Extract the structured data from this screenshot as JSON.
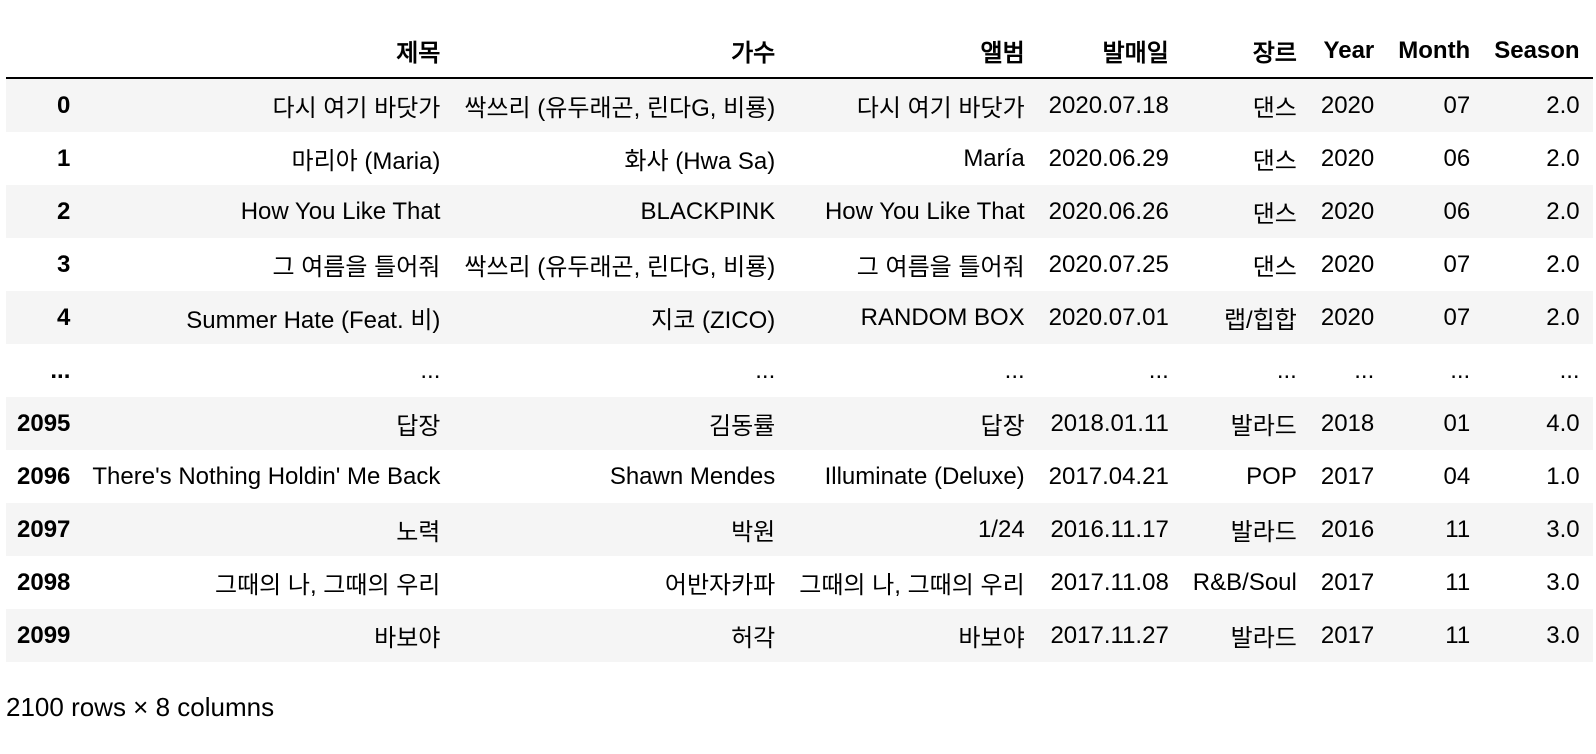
{
  "table": {
    "columns": [
      "제목",
      "가수",
      "앨범",
      "발매일",
      "장르",
      "Year",
      "Month",
      "Season"
    ],
    "rows": [
      {
        "index": "0",
        "cells": [
          "다시 여기 바닷가",
          "싹쓰리 (유두래곤, 린다G, 비룡)",
          "다시 여기 바닷가",
          "2020.07.18",
          "댄스",
          "2020",
          "07",
          "2.0"
        ]
      },
      {
        "index": "1",
        "cells": [
          "마리아 (Maria)",
          "화사 (Hwa Sa)",
          "María",
          "2020.06.29",
          "댄스",
          "2020",
          "06",
          "2.0"
        ]
      },
      {
        "index": "2",
        "cells": [
          "How You Like That",
          "BLACKPINK",
          "How You Like That",
          "2020.06.26",
          "댄스",
          "2020",
          "06",
          "2.0"
        ]
      },
      {
        "index": "3",
        "cells": [
          "그 여름을 틀어줘",
          "싹쓰리 (유두래곤, 린다G, 비룡)",
          "그 여름을 틀어줘",
          "2020.07.25",
          "댄스",
          "2020",
          "07",
          "2.0"
        ]
      },
      {
        "index": "4",
        "cells": [
          "Summer Hate (Feat. 비)",
          "지코 (ZICO)",
          "RANDOM BOX",
          "2020.07.01",
          "랩/힙합",
          "2020",
          "07",
          "2.0"
        ]
      },
      {
        "index": "...",
        "cells": [
          "...",
          "...",
          "...",
          "...",
          "...",
          "...",
          "...",
          "..."
        ]
      },
      {
        "index": "2095",
        "cells": [
          "답장",
          "김동률",
          "답장",
          "2018.01.11",
          "발라드",
          "2018",
          "01",
          "4.0"
        ]
      },
      {
        "index": "2096",
        "cells": [
          "There's Nothing Holdin' Me Back",
          "Shawn Mendes",
          "Illuminate (Deluxe)",
          "2017.04.21",
          "POP",
          "2017",
          "04",
          "1.0"
        ]
      },
      {
        "index": "2097",
        "cells": [
          "노력",
          "박원",
          "1/24",
          "2016.11.17",
          "발라드",
          "2016",
          "11",
          "3.0"
        ]
      },
      {
        "index": "2098",
        "cells": [
          "그때의 나, 그때의 우리",
          "어반자카파",
          "그때의 나, 그때의 우리",
          "2017.11.08",
          "R&B/Soul",
          "2017",
          "11",
          "3.0"
        ]
      },
      {
        "index": "2099",
        "cells": [
          "바보야",
          "허각",
          "바보야",
          "2017.11.27",
          "발라드",
          "2017",
          "11",
          "3.0"
        ]
      }
    ]
  },
  "footer": {
    "shape_text": "2100 rows × 8 columns"
  }
}
